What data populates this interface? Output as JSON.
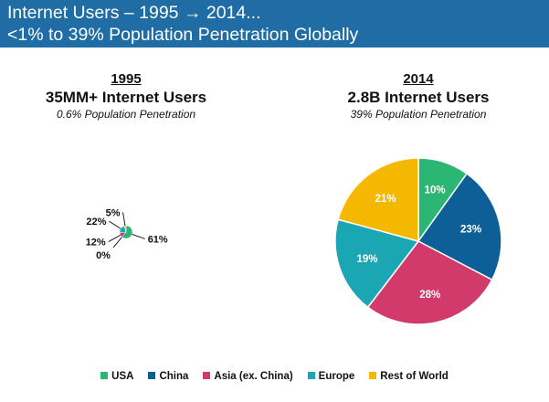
{
  "header": {
    "title_line1": "Internet Users – 1995 → 2014...",
    "title_line2": "<1% to 39% Population Penetration Globally"
  },
  "chart_data": [
    {
      "type": "pie",
      "year": "1995",
      "users": "35MM+ Internet Users",
      "penetration": "0.6% Population Penetration",
      "categories": [
        "USA",
        "China",
        "Asia (ex. China)",
        "Europe",
        "Rest of World"
      ],
      "values": [
        61,
        0,
        12,
        22,
        5
      ],
      "labels": [
        "61%",
        "0%",
        "12%",
        "22%",
        "5%"
      ]
    },
    {
      "type": "pie",
      "year": "2014",
      "users": "2.8B Internet Users",
      "penetration": "39% Population Penetration",
      "categories": [
        "USA",
        "China",
        "Asia (ex. China)",
        "Europe",
        "Rest of World"
      ],
      "values": [
        10,
        23,
        28,
        19,
        21
      ],
      "labels": [
        "10%",
        "23%",
        "28%",
        "19%",
        "21%"
      ]
    }
  ],
  "legend": [
    {
      "label": "USA",
      "color": "#2bb673"
    },
    {
      "label": "China",
      "color": "#0e5f97"
    },
    {
      "label": "Asia (ex. China)",
      "color": "#d23a6b"
    },
    {
      "label": "Europe",
      "color": "#1aa6b3"
    },
    {
      "label": "Rest of World",
      "color": "#f5b800"
    }
  ]
}
